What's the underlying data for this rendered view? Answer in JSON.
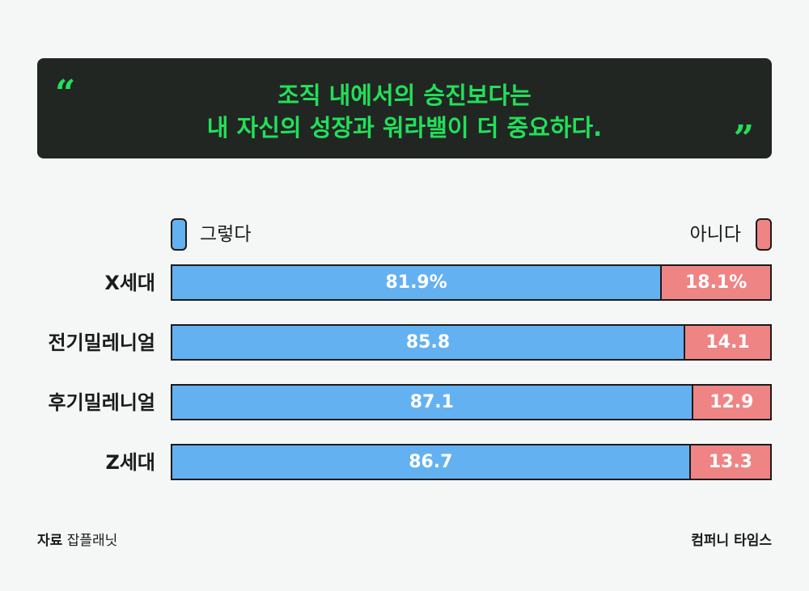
{
  "headline": {
    "line1": "조직 내에서의 승진보다는",
    "line2": "내 자신의 성장과 워라밸이 더 중요하다.",
    "quote_open": "“",
    "quote_close": "”"
  },
  "legend": {
    "yes_label": "그렇다",
    "no_label": "아니다"
  },
  "colors": {
    "yes": "#64b1f1",
    "no": "#ef8484",
    "accent": "#22e05a",
    "banner": "#222623"
  },
  "chart_data": {
    "type": "bar",
    "orientation": "horizontal",
    "stacked": true,
    "categories": [
      "X세대",
      "전기밀레니얼",
      "후기밀레니얼",
      "Z세대"
    ],
    "series": [
      {
        "name": "그렇다",
        "values": [
          81.9,
          85.8,
          87.1,
          86.7
        ],
        "labels": [
          "81.9%",
          "85.8",
          "87.1",
          "86.7"
        ]
      },
      {
        "name": "아니다",
        "values": [
          18.1,
          14.1,
          12.9,
          13.3
        ],
        "labels": [
          "18.1%",
          "14.1",
          "12.9",
          "13.3"
        ]
      }
    ],
    "xlim": [
      0,
      100
    ],
    "legend_position": "top",
    "grid": false
  },
  "footer": {
    "source_prefix": "자료",
    "source_name": "잡플래닛",
    "publisher": "컴퍼니 타임스"
  }
}
